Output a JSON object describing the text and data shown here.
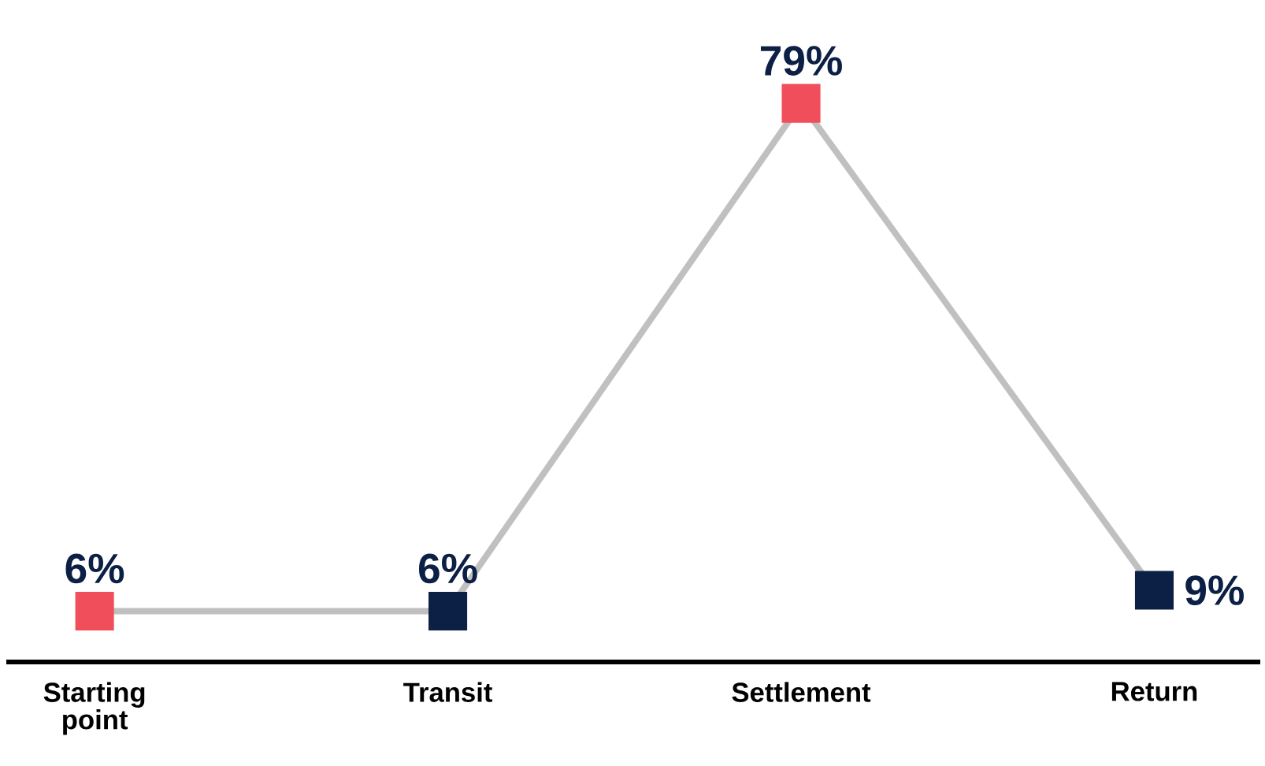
{
  "chart_data": {
    "type": "line",
    "categories": [
      "Starting point",
      "Transit",
      "Settlement",
      "Return"
    ],
    "values": [
      6,
      6,
      79,
      9
    ],
    "color": "#c0c0c0",
    "colors": [
      "#f04e5a",
      "#0c1f45",
      "#f04e5a",
      "#0c1f45"
    ],
    "marker": "square",
    "value_labels": [
      "6%",
      "6%",
      "79%",
      "9%"
    ]
  }
}
